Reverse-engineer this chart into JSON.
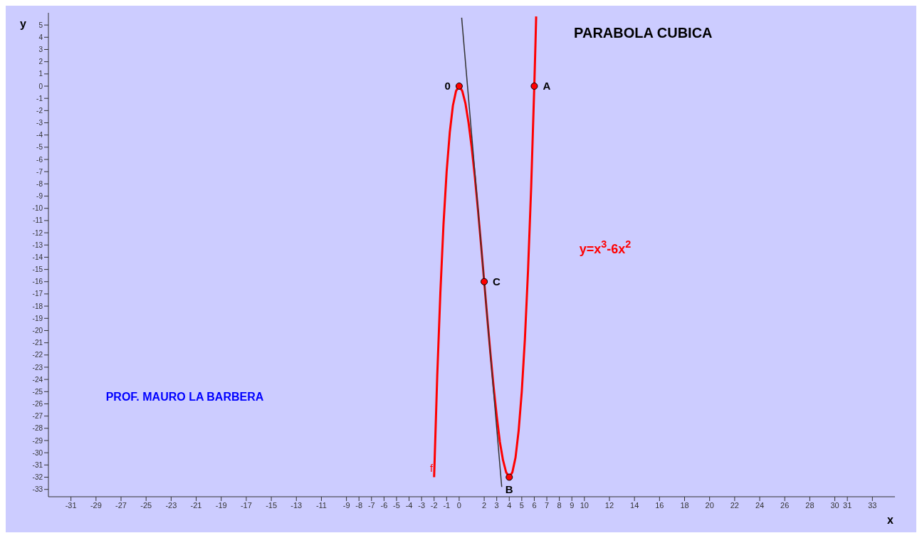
{
  "chart_data": {
    "type": "line",
    "title": "PARABOLA CUBICA",
    "xlabel": "x",
    "ylabel": "y",
    "xlim": [
      -32.8,
      34.8
    ],
    "ylim": [
      -33.6,
      6
    ],
    "xticks": [
      -31,
      -29,
      -27,
      -25,
      -23,
      -21,
      -19,
      -17,
      -15,
      -13,
      -11,
      -9,
      -8,
      -7,
      -6,
      -5,
      -4,
      -3,
      -2,
      -1,
      0,
      2,
      3,
      4,
      5,
      6,
      7,
      8,
      9,
      10,
      12,
      14,
      16,
      18,
      20,
      22,
      24,
      26,
      28,
      30,
      31,
      33
    ],
    "yticks": [
      5,
      4,
      3,
      2,
      1,
      0,
      -1,
      -2,
      -3,
      -4,
      -5,
      -6,
      -7,
      -8,
      -9,
      -10,
      -11,
      -12,
      -13,
      -14,
      -15,
      -16,
      -17,
      -18,
      -19,
      -20,
      -21,
      -22,
      -23,
      -24,
      -25,
      -26,
      -27,
      -28,
      -29,
      -30,
      -31,
      -32,
      -33
    ],
    "series": [
      {
        "color": "#ff0000",
        "marker": "none",
        "x": [
          -2,
          -1.75,
          -1.5,
          -1.25,
          -1,
          -0.75,
          -0.5,
          -0.25,
          0,
          0.25,
          0.5,
          0.75,
          1,
          1.25,
          1.5,
          1.75,
          2,
          2.25,
          2.5,
          2.75,
          3,
          3.25,
          3.5,
          3.75,
          4,
          4.25,
          4.5,
          4.75,
          5,
          5.25,
          5.5,
          5.75,
          6,
          6.1,
          6.15
        ],
        "values": [
          -32,
          -23.7,
          -16.9,
          -11.3,
          -7,
          -3.8,
          -1.6,
          -0.4,
          0,
          -0.4,
          -1.4,
          -3,
          -5,
          -7.4,
          -10.1,
          -13,
          -16,
          -19,
          -21.9,
          -24.6,
          -27,
          -29.1,
          -30.6,
          -31.6,
          -32,
          -31.6,
          -30.4,
          -28.2,
          -25,
          -20.7,
          -15.1,
          -8.3,
          0,
          3.7,
          5.7
        ]
      },
      {
        "type": "line",
        "color": "#333333",
        "marker": "none",
        "x": [
          0.2,
          3.4
        ],
        "values": [
          5.6,
          -32.8
        ]
      },
      {
        "type": "scatter",
        "color": "#ff0000",
        "marker": "circle",
        "x": [
          0,
          2,
          4,
          6
        ],
        "values": [
          0,
          -16,
          -32,
          0
        ]
      }
    ],
    "annotations": [
      {
        "text": "0",
        "x": 0,
        "y": 0
      },
      {
        "text": "A",
        "x": 6,
        "y": 0
      },
      {
        "text": "B",
        "x": 4,
        "y": -32
      },
      {
        "text": "C",
        "x": 2,
        "y": -16
      },
      "y=x$^{3}$-6x$^{2}$",
      "PROF. MAURO LA BARBERA",
      "f"
    ]
  }
}
